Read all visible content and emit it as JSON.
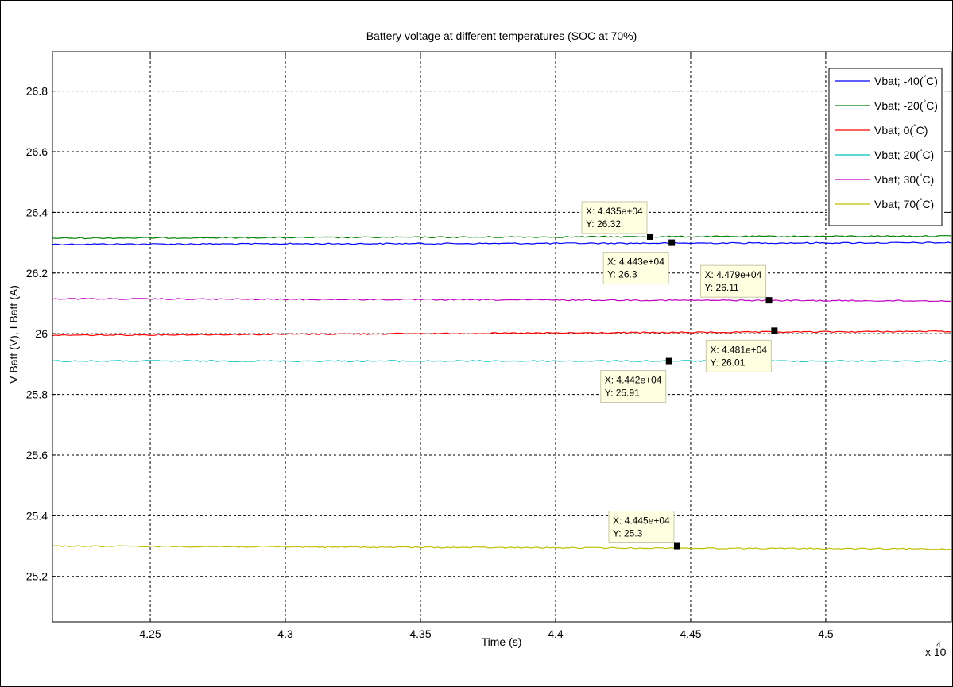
{
  "chart_data": {
    "type": "line",
    "title": "Battery voltage at different temperatures (SOC at 70%)",
    "xlabel": "Time (s)",
    "ylabel": "V Batt (V), I Batt (A)",
    "x_exponent_label": "x 10",
    "x_exponent_power": "4",
    "xlim": [
      4.2138,
      4.5465
    ],
    "ylim": [
      25.05,
      26.93
    ],
    "grid": true,
    "legend_position": "top-right",
    "x_ticks": [
      4.25,
      4.3,
      4.35,
      4.4,
      4.45,
      4.5
    ],
    "x_tick_labels": [
      "4.25",
      "4.3",
      "4.35",
      "4.4",
      "4.45",
      "4.5"
    ],
    "y_ticks": [
      25.2,
      25.4,
      25.6,
      25.8,
      26,
      26.2,
      26.4,
      26.6,
      26.8
    ],
    "y_tick_labels": [
      "25.2",
      "25.4",
      "25.6",
      "25.8",
      "26",
      "26.2",
      "26.4",
      "26.6",
      "26.8"
    ],
    "series": [
      {
        "name": "Vbat; -40(",
        "color": "#0000ff",
        "x": [
          4.2138,
          4.5465
        ],
        "y": [
          26.295,
          26.3
        ]
      },
      {
        "name": "Vbat; -20(",
        "color": "#008000",
        "x": [
          4.2138,
          4.5465
        ],
        "y": [
          26.315,
          26.322
        ]
      },
      {
        "name": "Vbat; 0(",
        "color": "#ff0000",
        "x": [
          4.2138,
          4.5465
        ],
        "y": [
          25.995,
          26.008
        ]
      },
      {
        "name": "Vbat; 20(",
        "color": "#00bfbf",
        "x": [
          4.2138,
          4.5465
        ],
        "y": [
          25.91,
          25.91
        ]
      },
      {
        "name": "Vbat; 30(",
        "color": "#bf00bf",
        "x": [
          4.2138,
          4.5465
        ],
        "y": [
          26.115,
          26.108
        ]
      },
      {
        "name": "Vbat; 70(",
        "color": "#bfbf00",
        "x": [
          4.2138,
          4.5465
        ],
        "y": [
          25.3,
          25.29
        ]
      }
    ],
    "legend_degree_mark": "°",
    "legend_unit_suffix": "C)",
    "datatips": [
      {
        "x": 4.435,
        "y": 26.32,
        "label_x": "X: 4.435e+04",
        "label_y": "Y: 26.32",
        "placement": "above-left"
      },
      {
        "x": 4.443,
        "y": 26.3,
        "label_x": "X: 4.443e+04",
        "label_y": "Y: 26.3",
        "placement": "below-left"
      },
      {
        "x": 4.479,
        "y": 26.11,
        "label_x": "X: 4.479e+04",
        "label_y": "Y: 26.11",
        "placement": "above-left"
      },
      {
        "x": 4.481,
        "y": 26.01,
        "label_x": "X: 4.481e+04",
        "label_y": "Y: 26.01",
        "placement": "below-left"
      },
      {
        "x": 4.442,
        "y": 25.91,
        "label_x": "X: 4.442e+04",
        "label_y": "Y: 25.91",
        "placement": "below-left"
      },
      {
        "x": 4.445,
        "y": 25.3,
        "label_x": "X: 4.445e+04",
        "label_y": "Y: 25.3",
        "placement": "above-left"
      }
    ]
  }
}
